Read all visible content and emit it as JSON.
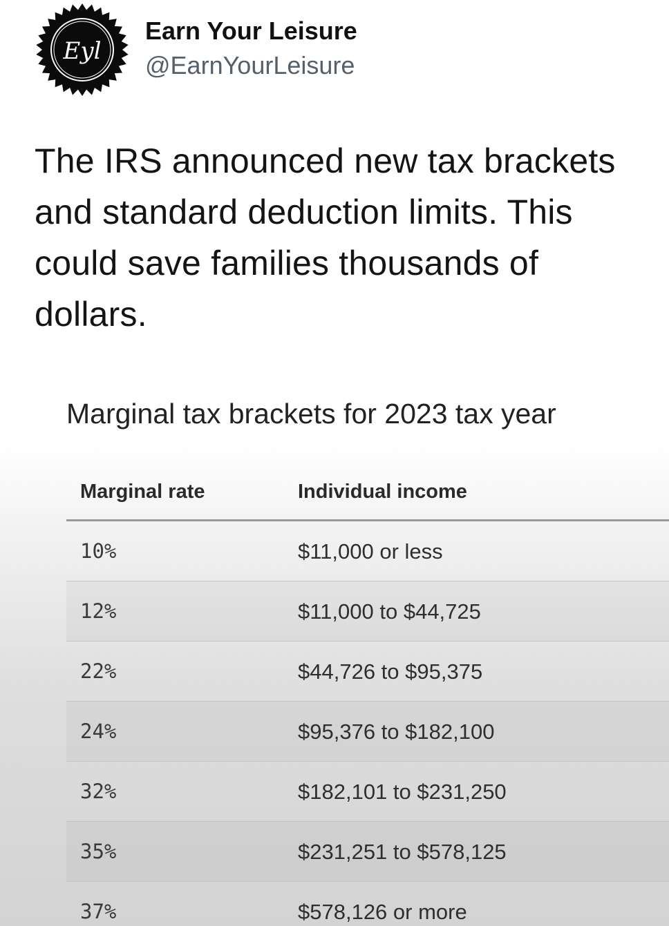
{
  "author": {
    "display_name": "Earn Your Leisure",
    "handle": "@EarnYourLeisure",
    "avatar_monogram": "Eyl",
    "avatar_icon": "badge-logo-icon"
  },
  "tweet": {
    "text": "The IRS announced new tax brackets\nand standard deduction limits. This\ncould save families thousands of\ndollars."
  },
  "table": {
    "title": "Marginal tax brackets for 2023 tax year",
    "headers": {
      "rate": "Marginal rate",
      "income": "Individual income"
    },
    "rows": [
      {
        "rate": "10%",
        "income": "$11,000 or less"
      },
      {
        "rate": "12%",
        "income": "$11,000 to $44,725"
      },
      {
        "rate": "22%",
        "income": "$44,726 to $95,375"
      },
      {
        "rate": "24%",
        "income": "$95,376 to $182,100"
      },
      {
        "rate": "32%",
        "income": "$182,101 to $231,250"
      },
      {
        "rate": "35%",
        "income": "$231,251 to $578,125"
      },
      {
        "rate": "37%",
        "income": "$578,126 or more"
      }
    ]
  },
  "colors": {
    "text_primary": "#111111",
    "text_secondary": "#55606a",
    "rule": "#9a9a9a"
  }
}
